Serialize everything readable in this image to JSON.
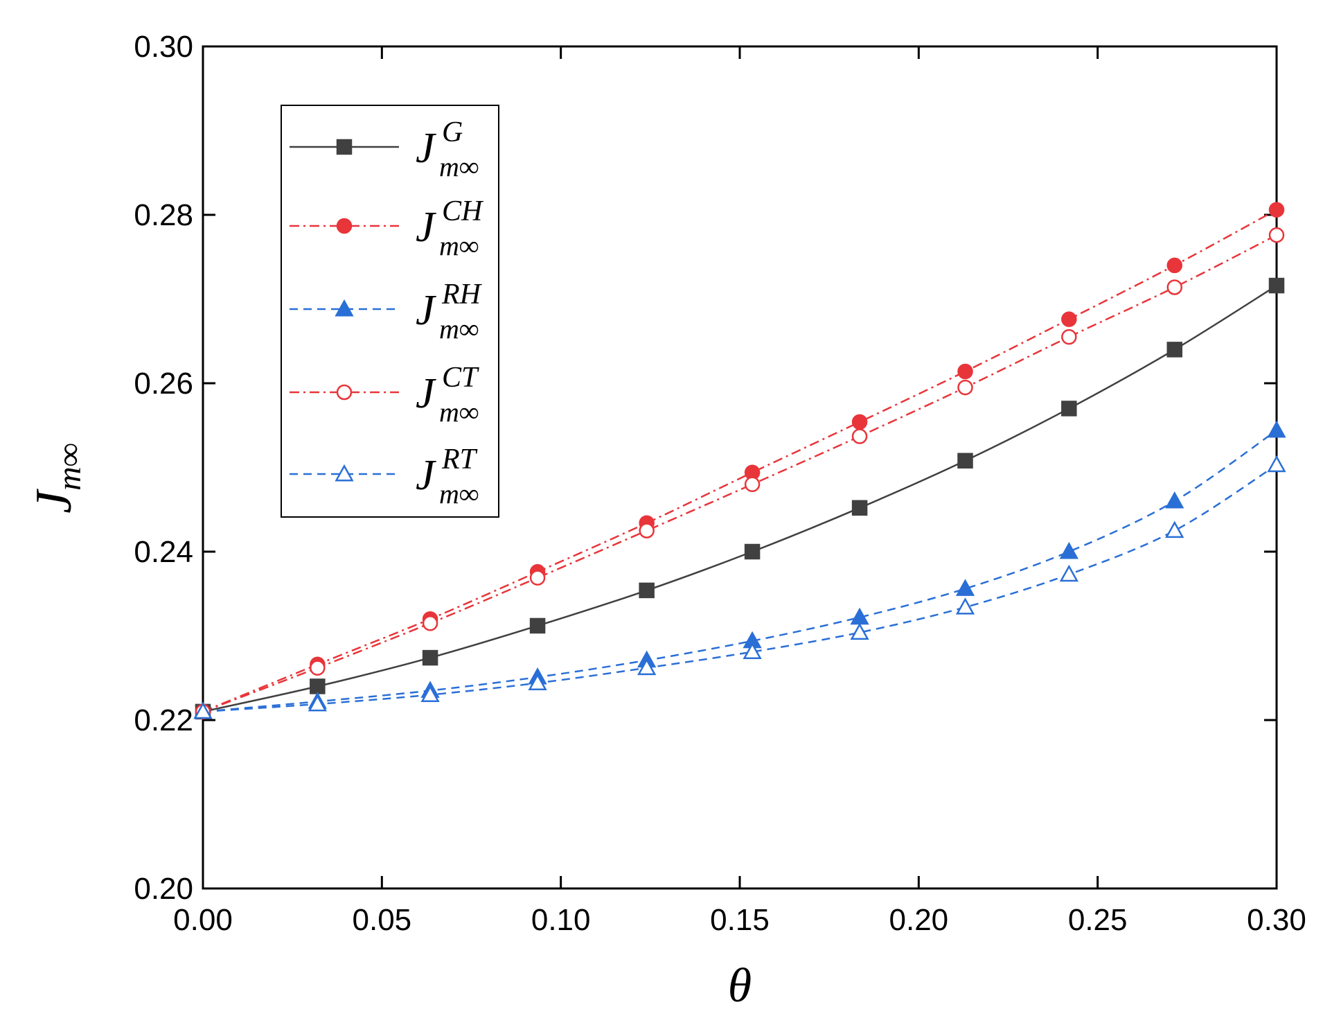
{
  "chart_data": {
    "type": "line",
    "xlabel": "θ",
    "ylabel": {
      "main": "J",
      "sub": "m∞"
    },
    "xlim": [
      0.0,
      0.3
    ],
    "ylim": [
      0.2,
      0.3
    ],
    "xticks": [
      "0.00",
      "0.05",
      "0.10",
      "0.15",
      "0.20",
      "0.25",
      "0.30"
    ],
    "yticks": [
      "0.20",
      "0.22",
      "0.24",
      "0.26",
      "0.28",
      "0.30"
    ],
    "x": [
      0.0,
      0.032,
      0.0635,
      0.0935,
      0.124,
      0.1535,
      0.1835,
      0.213,
      0.242,
      0.2715,
      0.3
    ],
    "series": [
      {
        "id": "G",
        "label_main": "J",
        "label_sup": "G",
        "label_sub": "m∞",
        "color": "#404040",
        "dash": "",
        "marker": "square",
        "filled": true,
        "values": [
          0.221,
          0.224,
          0.2274,
          0.2312,
          0.2354,
          0.24,
          0.2452,
          0.2508,
          0.257,
          0.264,
          0.2716
        ]
      },
      {
        "id": "CH",
        "label_main": "J",
        "label_sup": "CH",
        "label_sub": "m∞",
        "color": "#e8353a",
        "dash": "14,6,3,6",
        "marker": "circle",
        "filled": true,
        "values": [
          0.221,
          0.2266,
          0.232,
          0.2376,
          0.2434,
          0.2494,
          0.2554,
          0.2614,
          0.2676,
          0.274,
          0.2806
        ]
      },
      {
        "id": "RH",
        "label_main": "J",
        "label_sup": "RH",
        "label_sub": "m∞",
        "color": "#2a6fd6",
        "dash": "12,8",
        "marker": "triangle",
        "filled": true,
        "values": [
          0.221,
          0.2222,
          0.2235,
          0.2251,
          0.2271,
          0.2294,
          0.2322,
          0.2356,
          0.24,
          0.246,
          0.2544
        ]
      },
      {
        "id": "CT",
        "label_main": "J",
        "label_sup": "CT",
        "label_sub": "m∞",
        "color": "#e8353a",
        "dash": "14,6,3,6",
        "marker": "circle",
        "filled": false,
        "values": [
          0.221,
          0.2262,
          0.2315,
          0.2369,
          0.2425,
          0.248,
          0.2537,
          0.2595,
          0.2655,
          0.2714,
          0.2776
        ]
      },
      {
        "id": "RT",
        "label_main": "J",
        "label_sup": "RT",
        "label_sub": "m∞",
        "color": "#2a6fd6",
        "dash": "12,8",
        "marker": "triangle",
        "filled": false,
        "values": [
          0.221,
          0.2219,
          0.223,
          0.2244,
          0.2262,
          0.2281,
          0.2304,
          0.2334,
          0.2373,
          0.2425,
          0.2503
        ]
      }
    ],
    "legend_position": "top-left"
  }
}
